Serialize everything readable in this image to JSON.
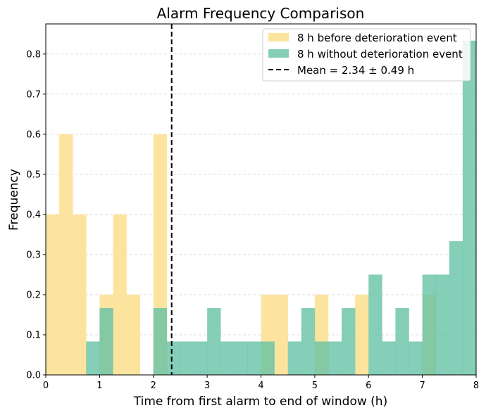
{
  "chart_data": {
    "type": "bar",
    "subtype": "histogram",
    "title": "Alarm Frequency Comparison",
    "xlabel": "Time from first alarm to end of window (h)",
    "ylabel": "Frequency",
    "xlim": [
      0,
      8
    ],
    "ylim": [
      0,
      0.875
    ],
    "bin_width": 0.25,
    "x_ticks": [
      "0",
      "1",
      "2",
      "3",
      "4",
      "5",
      "6",
      "7",
      "8"
    ],
    "y_ticks": [
      "0.0",
      "0.1",
      "0.2",
      "0.3",
      "0.4",
      "0.5",
      "0.6",
      "0.7",
      "0.8"
    ],
    "grid": "horizontal dashed",
    "legend_position": "top-right",
    "series": [
      {
        "name": "8 h before deterioration event",
        "color": "#fde49e",
        "values": [
          0.4,
          0.6,
          0.4,
          0,
          0.2,
          0.4,
          0.2,
          0,
          0.6,
          0,
          0,
          0,
          0,
          0,
          0,
          0,
          0.2,
          0.2,
          0,
          0,
          0.2,
          0,
          0,
          0.2,
          0,
          0,
          0,
          0,
          0.2,
          0,
          0,
          0
        ]
      },
      {
        "name": "8 h without deterioration event",
        "color": "#66c2a5",
        "values": [
          0,
          0,
          0,
          0.0833,
          0.1667,
          0,
          0,
          0,
          0.1667,
          0.0833,
          0.0833,
          0.0833,
          0.1667,
          0.0833,
          0.0833,
          0.0833,
          0.0833,
          0,
          0.0833,
          0.1667,
          0.0833,
          0.0833,
          0.1667,
          0,
          0.25,
          0.0833,
          0.1667,
          0.0833,
          0.25,
          0.25,
          0.3333,
          0.8333
        ]
      }
    ],
    "mean_line": {
      "label": "Mean = 2.34 ± 0.49 h",
      "value": 2.34,
      "style": "dashed",
      "color": "#000000"
    }
  }
}
